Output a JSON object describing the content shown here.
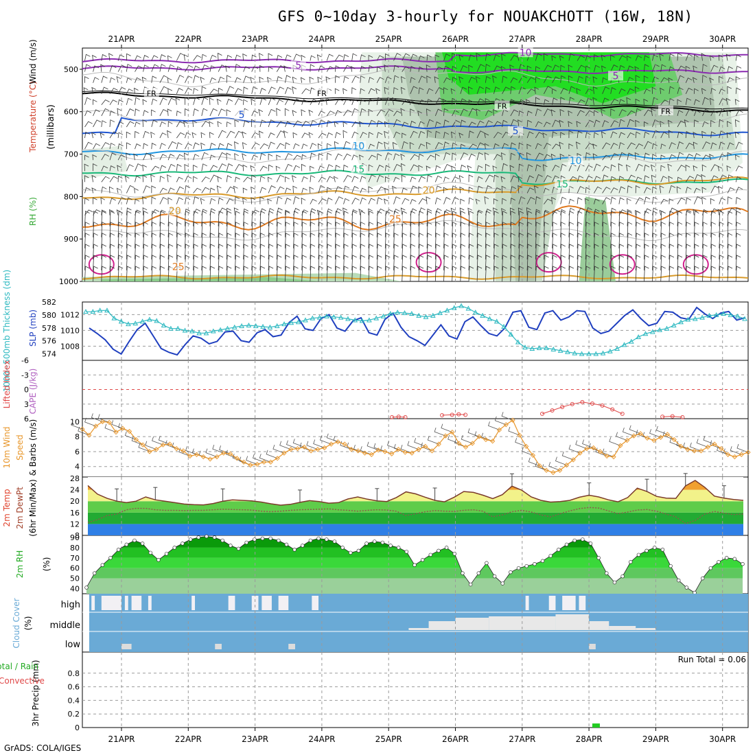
{
  "title": "GFS 0~10day 3-hourly for NOUAKCHOTT (16W, 18N)",
  "credit": "GrADS: COLA/IGES",
  "dates": [
    "21APR",
    "22APR",
    "23APR",
    "24APR",
    "25APR",
    "26APR",
    "27APR",
    "28APR",
    "29APR",
    "30APR"
  ],
  "colors": {
    "grid": "#9a9a9a",
    "slp": "#1f3fbf",
    "thickness": "#2bb8c0",
    "lifted": "#e04848",
    "cape": "#b060c0",
    "wind10": "#e8962a",
    "temp": "#7a3a2a",
    "rh": "#22aa22",
    "cloud": "#6aaad6",
    "precip": "#22cc22"
  },
  "chart_data": [
    {
      "type": "contour",
      "panel": "upper-air",
      "ylabel_parts": [
        "Wind (m/s)",
        "Temperature (°C)",
        "RH (%)"
      ],
      "yunit": "(millibars)",
      "yticks": [
        500,
        600,
        700,
        800,
        900,
        1000
      ],
      "ylim": [
        450,
        1000
      ],
      "contour_labels": [
        {
          "level": "10",
          "color": "#8a2ab0",
          "day": 6.05,
          "p": 465
        },
        {
          "level": "5",
          "color": "#8a2ab0",
          "day": 2.65,
          "p": 495
        },
        {
          "level": "5",
          "color": "#8a2ab0",
          "day": 7.4,
          "p": 520
        },
        {
          "level": "FR",
          "color": "#000000",
          "day": 0.45,
          "p": 560
        },
        {
          "level": "FR",
          "color": "#000000",
          "day": 3.0,
          "p": 560
        },
        {
          "level": "FR",
          "color": "#000000",
          "day": 5.7,
          "p": 590
        },
        {
          "level": "FR",
          "color": "#000000",
          "day": 8.15,
          "p": 602
        },
        {
          "level": "5",
          "color": "#1f55d0",
          "day": 1.8,
          "p": 612
        },
        {
          "level": "5",
          "color": "#1f55d0",
          "day": 5.9,
          "p": 650
        },
        {
          "level": "10",
          "color": "#1f95e0",
          "day": 3.55,
          "p": 685
        },
        {
          "level": "10",
          "color": "#1f95e0",
          "day": 6.8,
          "p": 720
        },
        {
          "level": "15",
          "color": "#18b878",
          "day": 3.55,
          "p": 740
        },
        {
          "level": "15",
          "color": "#18b878",
          "day": 6.6,
          "p": 775
        },
        {
          "level": "20",
          "color": "#d89a2a",
          "day": 4.6,
          "p": 790
        },
        {
          "level": "20",
          "color": "#d89a2a",
          "day": 0.8,
          "p": 838
        },
        {
          "level": "25",
          "color": "#e07a20",
          "day": 4.1,
          "p": 858
        },
        {
          "level": "25",
          "color": "#e07a20",
          "day": 0.85,
          "p": 970
        }
      ]
    },
    {
      "type": "line",
      "panel": "thickness-slp",
      "ylabel_left": "1000~500mb Thickness (dm)",
      "ylabel_right": "SLP (mb)",
      "thickness_ticks": [
        574,
        576,
        578,
        580,
        582
      ],
      "slp_ticks": [
        1008,
        1010,
        1012
      ],
      "series": [
        {
          "name": "SLP (mb)",
          "values": [
            1010.3,
            1009.6,
            1008.8,
            1007.6,
            1007,
            1008.6,
            1010.1,
            1010.9,
            1009.3,
            1007.7,
            1007.2,
            1006.9,
            1008.2,
            1009.3,
            1009,
            1008.3,
            1008.6,
            1009.8,
            1009.9,
            1008.7,
            1008.5,
            1009.7,
            1010.1,
            1009.2,
            1009.4,
            1011,
            1011.8,
            1010.2,
            1010,
            1011.5,
            1012,
            1010.3,
            1009.9,
            1011.2,
            1011.6,
            1009.7,
            1009.4,
            1011.4,
            1012.2,
            1010.4,
            1009.2,
            1008.7,
            1008.1,
            1009.4,
            1010.7,
            1009.3,
            1008.9,
            1011.1,
            1011.7,
            1010.6,
            1009.6,
            1009.3,
            1010.3,
            1012.3,
            1012.5,
            1010.4,
            1010.1,
            1012.2,
            1012.5,
            1011.3,
            1011.7,
            1012.5,
            1012.4,
            1010.3,
            1009.6,
            1009.9,
            1010.9,
            1011.9,
            1012.6,
            1011.5,
            1010.6,
            1010.9,
            1012.4,
            1012.3,
            1011.6,
            1011.4,
            1012.9,
            1012.1,
            1011.5,
            1012.2,
            1012.4,
            1011.3,
            1011.6
          ]
        },
        {
          "name": "1000~500mb Thickness (dm)",
          "values": [
            580.5,
            580.5,
            580.7,
            580.7,
            579.5,
            579,
            578.6,
            578.7,
            579,
            579.3,
            579.1,
            578.4,
            577.9,
            577.9,
            577.6,
            577.5,
            577.2,
            577.2,
            577.5,
            577.7,
            577.9,
            578.1,
            578.3,
            578.4,
            578.3,
            578.2,
            578.1,
            578.3,
            578.6,
            578.8,
            578.9,
            579.2,
            579.5,
            579.6,
            579.8,
            579.7,
            579.6,
            579.4,
            579.2,
            579.1,
            579.2,
            579.5,
            579.8,
            580.2,
            580.4,
            580.3,
            580.2,
            579.9,
            579.7,
            579.9,
            580.3,
            580.7,
            581.1,
            581.4,
            581.0,
            580.4,
            579.9,
            579.4,
            579.0,
            578.2,
            577.0,
            575.8,
            575.0,
            574.8,
            574.9,
            574.9,
            574.7,
            574.5,
            574.3,
            574.1,
            574.0,
            574.0,
            574.0,
            574.1,
            574.4,
            574.8,
            575.4,
            575.9,
            576.6,
            577.1,
            577.4,
            577.7,
            577.9,
            578.4,
            578.9,
            579.3,
            579.4,
            579.6,
            579.9,
            580.0,
            580.2,
            580.0,
            579.8,
            579.4
          ]
        }
      ]
    },
    {
      "type": "line",
      "panel": "stability",
      "ylabel_left": "Lifted Index",
      "ylabel_right": "CAPE (J/kg)",
      "yticks": [
        "-6",
        "-3",
        "0",
        "3",
        "6"
      ],
      "ylim": [
        -6,
        6
      ],
      "series": [
        {
          "name": "Lifted Index",
          "values": [
            {
              "x": 4.05,
              "y": 5.7
            },
            {
              "x": 4.15,
              "y": 5.6
            },
            {
              "x": 4.25,
              "y": 5.7
            },
            {
              "x": 4.8,
              "y": 5.3
            },
            {
              "x": 4.95,
              "y": 5.2
            },
            {
              "x": 5.05,
              "y": 5.1
            },
            {
              "x": 5.15,
              "y": 5.2
            },
            {
              "x": 6.3,
              "y": 5.0
            },
            {
              "x": 6.45,
              "y": 4.3
            },
            {
              "x": 6.6,
              "y": 3.6
            },
            {
              "x": 6.75,
              "y": 3.0
            },
            {
              "x": 6.9,
              "y": 2.6
            },
            {
              "x": 7.05,
              "y": 2.9
            },
            {
              "x": 7.2,
              "y": 3.3
            },
            {
              "x": 7.35,
              "y": 4.1
            },
            {
              "x": 7.5,
              "y": 5.0
            },
            {
              "x": 8.1,
              "y": 5.6
            },
            {
              "x": 8.25,
              "y": 5.5
            },
            {
              "x": 8.4,
              "y": 5.7
            }
          ]
        }
      ]
    },
    {
      "type": "line",
      "panel": "wind10m",
      "ylabel": "10m Wind Speed & Barbs (m/s)",
      "yticks": [
        4,
        6,
        8,
        10
      ],
      "ylim": [
        2.6,
        10.4
      ],
      "series": [
        {
          "name": "10m Wind Speed",
          "values": [
            9,
            8.2,
            9.4,
            10,
            9.9,
            8.6,
            9.1,
            8.7,
            7.6,
            6.9,
            6,
            6.3,
            6.9,
            7,
            6.4,
            6.1,
            5.4,
            5.6,
            5.3,
            5,
            5.3,
            5.8,
            5.7,
            5.1,
            4.6,
            4.2,
            4.3,
            4.6,
            4.6,
            5.1,
            5.8,
            6.3,
            6.4,
            6.6,
            6.1,
            6.3,
            6.5,
            7,
            7.3,
            7,
            6.3,
            6.1,
            5.8,
            5.6,
            6.2,
            6,
            5.7,
            6.3,
            5.9,
            5.8,
            6.3,
            6.7,
            6.1,
            7,
            8.1,
            8.6,
            7.1,
            6.6,
            7.1,
            8,
            7.6,
            7.4,
            8.9,
            9.6,
            10.2,
            8.2,
            6.7,
            5.5,
            4.1,
            3.5,
            3.2,
            3.5,
            4.2,
            4.9,
            5.8,
            6.4,
            6.5,
            6,
            5.4,
            5.3,
            6.8,
            7.5,
            8.1,
            8.4,
            7.8,
            7.5,
            7.9,
            8.3,
            7.6,
            6.7,
            6.3,
            6.1,
            6.1,
            6.6,
            7,
            6.4,
            5.6,
            5.3,
            5.6,
            5.9
          ]
        }
      ]
    },
    {
      "type": "area",
      "panel": "temperature",
      "ylabel": "2m Temp 2m DewPt (6hr Min/Max)",
      "yticks": [
        8,
        12,
        16,
        20,
        24,
        28
      ],
      "ylim": [
        8,
        28
      ],
      "series": [
        {
          "name": "2m Temp",
          "values": [
            25.5,
            22.5,
            21,
            20,
            19.5,
            20,
            21.5,
            20.5,
            20,
            19.5,
            19,
            18.8,
            18.7,
            19.2,
            20,
            20.5,
            20.3,
            20.1,
            19.7,
            19.1,
            18.6,
            18.9,
            19.6,
            20.2,
            19.9,
            19.3,
            19.5,
            20.8,
            21.5,
            20.7,
            20.1,
            19.9,
            21.3,
            23.3,
            22.6,
            21.4,
            20.3,
            19.8,
            21.4,
            23.4,
            23.1,
            22.1,
            20.9,
            22.3,
            25.3,
            23.9,
            21.5,
            20.3,
            19.7,
            19.9,
            20.3,
            21.4,
            22.1,
            21.5,
            20.5,
            19.8,
            21.3,
            24.6,
            23.4,
            21.7,
            21.1,
            21,
            25.4,
            27.3,
            24.9,
            21.8,
            21.1,
            20.6,
            20.3
          ]
        },
        {
          "name": "2m DewPt",
          "values": [
            12.5,
            13.5,
            15,
            15.5,
            17,
            17.5,
            17.5,
            17,
            16.8,
            16.8,
            16.7,
            16.8,
            16.8,
            17,
            17.2,
            17.1,
            17,
            16.9,
            16.5,
            16.3,
            16.5,
            16.8,
            17,
            17.1,
            17.2,
            17.3,
            17,
            16.8,
            16.5,
            16.8,
            17,
            16.9,
            16.5,
            15,
            15.6,
            16.3,
            16.7,
            16.5,
            16.4,
            16.8,
            17,
            16.5,
            14.5,
            15.2,
            16.3,
            16.8,
            16.2,
            15.2,
            14.5,
            15.6,
            16.6,
            17.4,
            17.8,
            17.6,
            16.6,
            15.6,
            16.2,
            16.9,
            17.1,
            16.5,
            15.5,
            14.5,
            12.2,
            13.2,
            15.5,
            16.4,
            15.8,
            15.3,
            15.5
          ]
        }
      ]
    },
    {
      "type": "area",
      "panel": "rh2m",
      "ylabel": "2m RH (%)",
      "yticks": [
        40,
        50,
        60,
        70,
        80,
        90
      ],
      "ylim": [
        35,
        92
      ],
      "series": [
        {
          "name": "2m RH",
          "values": [
            41,
            55,
            63,
            70,
            78,
            83,
            87,
            84,
            75,
            68,
            74,
            80,
            84,
            88,
            90,
            91,
            90,
            87,
            82,
            79,
            85,
            88,
            89,
            89,
            87,
            83,
            78,
            82,
            87,
            89,
            88,
            86,
            80,
            75,
            77,
            84,
            86,
            85,
            82,
            80,
            76,
            63,
            68,
            73,
            77,
            80,
            74,
            55,
            44,
            55,
            65,
            52,
            45,
            56,
            60,
            62,
            64,
            67,
            72,
            78,
            83,
            87,
            88,
            84,
            70,
            55,
            46,
            52,
            66,
            73,
            77,
            80,
            78,
            62,
            48,
            41,
            36,
            50,
            60,
            66,
            70,
            69,
            64
          ]
        }
      ]
    },
    {
      "type": "bar",
      "panel": "cloud-cover",
      "ylabel": "Cloud Cover (%)",
      "levels": [
        "high",
        "middle",
        "low"
      ]
    },
    {
      "type": "bar",
      "panel": "precip",
      "ylabel": "3hr Precip (mm)",
      "ylabel_left": "Total / Rain",
      "ylabel_left2": "Convective",
      "yticks": [
        "0",
        "0.2",
        "0.4",
        "0.6",
        "0.8"
      ],
      "ylim": [
        0,
        1.0
      ],
      "run_total": "Run Total = 0.06",
      "series": [
        {
          "name": "3hr Precip",
          "values": [
            {
              "x": 7.05,
              "y": 0.06
            }
          ]
        }
      ]
    }
  ]
}
